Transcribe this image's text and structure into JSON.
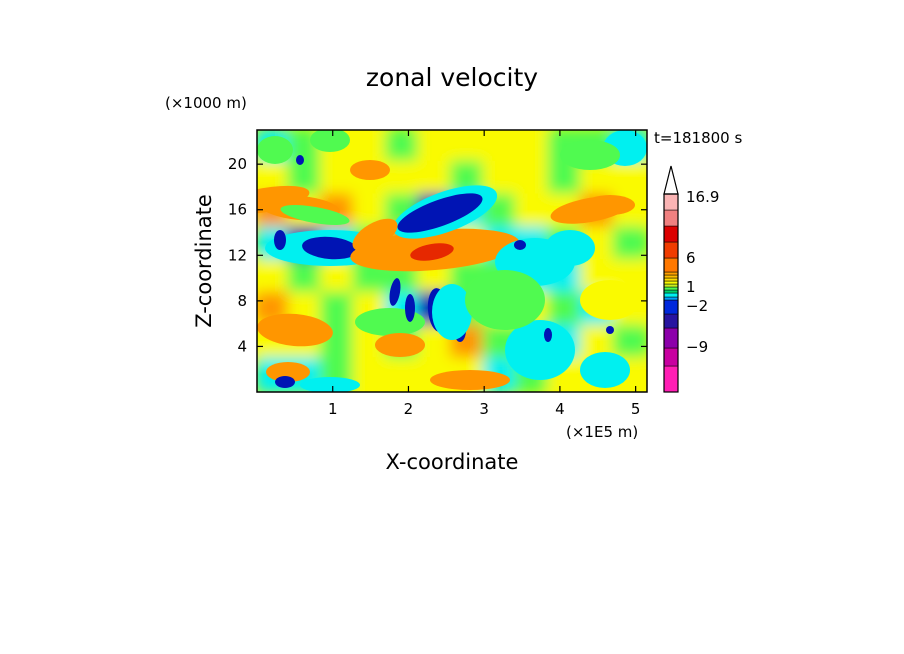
{
  "chart_data": {
    "type": "heatmap",
    "title": "zonal velocity",
    "xlabel": "X-coordinate",
    "ylabel": "Z-coordinate",
    "x_unit": "(×1E5 m)",
    "y_unit": "(×1000 m)",
    "time_label": "t=181800 s",
    "xlim": [
      0,
      5.15
    ],
    "ylim": [
      0,
      23
    ],
    "x_ticks": [
      1,
      2,
      3,
      4,
      5
    ],
    "y_ticks": [
      4,
      8,
      12,
      16,
      20
    ],
    "colorbar": {
      "labels": [
        "16.9",
        "6",
        "1",
        "−2",
        "−9"
      ],
      "level_colors": [
        "#ff1eb4",
        "#c800a0",
        "#8c00aa",
        "#2814a0",
        "#0028dc",
        "#00a0ff",
        "#00f0f0",
        "#00d26e",
        "#50fa50",
        "#c8f01e",
        "#fafa00",
        "#ffdc00",
        "#ffbe00",
        "#ffa000",
        "#ff7800",
        "#f03c00",
        "#dc0000",
        "#f08080",
        "#fab4b4"
      ]
    },
    "field": [
      [
        "cyan",
        "green",
        "yellow",
        "yellow",
        "green",
        "yellow",
        "yellow",
        "yellow",
        "yellow",
        "green",
        "green",
        "cyan"
      ],
      [
        "yellow",
        "green",
        "yellow",
        "yellow",
        "yellow",
        "yellow",
        "green",
        "yellow",
        "yellow",
        "green",
        "yellow",
        "yellow"
      ],
      [
        "orange",
        "yellow",
        "orange",
        "yellow",
        "green",
        "navy",
        "cyan",
        "green",
        "yellow",
        "yellow",
        "orange",
        "yellow"
      ],
      [
        "cyan",
        "navy",
        "cyan",
        "green",
        "orange",
        "orange",
        "yellow",
        "cyan",
        "cyan",
        "green",
        "yellow",
        "green"
      ],
      [
        "yellow",
        "green",
        "yellow",
        "green",
        "green",
        "yellow",
        "green",
        "green",
        "cyan",
        "cyan",
        "yellow",
        "yellow"
      ],
      [
        "orange",
        "yellow",
        "green",
        "yellow",
        "cyan",
        "navy",
        "green",
        "yellow",
        "yellow",
        "green",
        "cyan",
        "yellow"
      ],
      [
        "yellow",
        "yellow",
        "green",
        "yellow",
        "green",
        "yellow",
        "orange",
        "green",
        "green",
        "cyan",
        "yellow",
        "green"
      ],
      [
        "cyan",
        "cyan",
        "green",
        "yellow",
        "yellow",
        "yellow",
        "yellow",
        "cyan",
        "green",
        "yellow",
        "yellow",
        "yellow"
      ]
    ]
  }
}
